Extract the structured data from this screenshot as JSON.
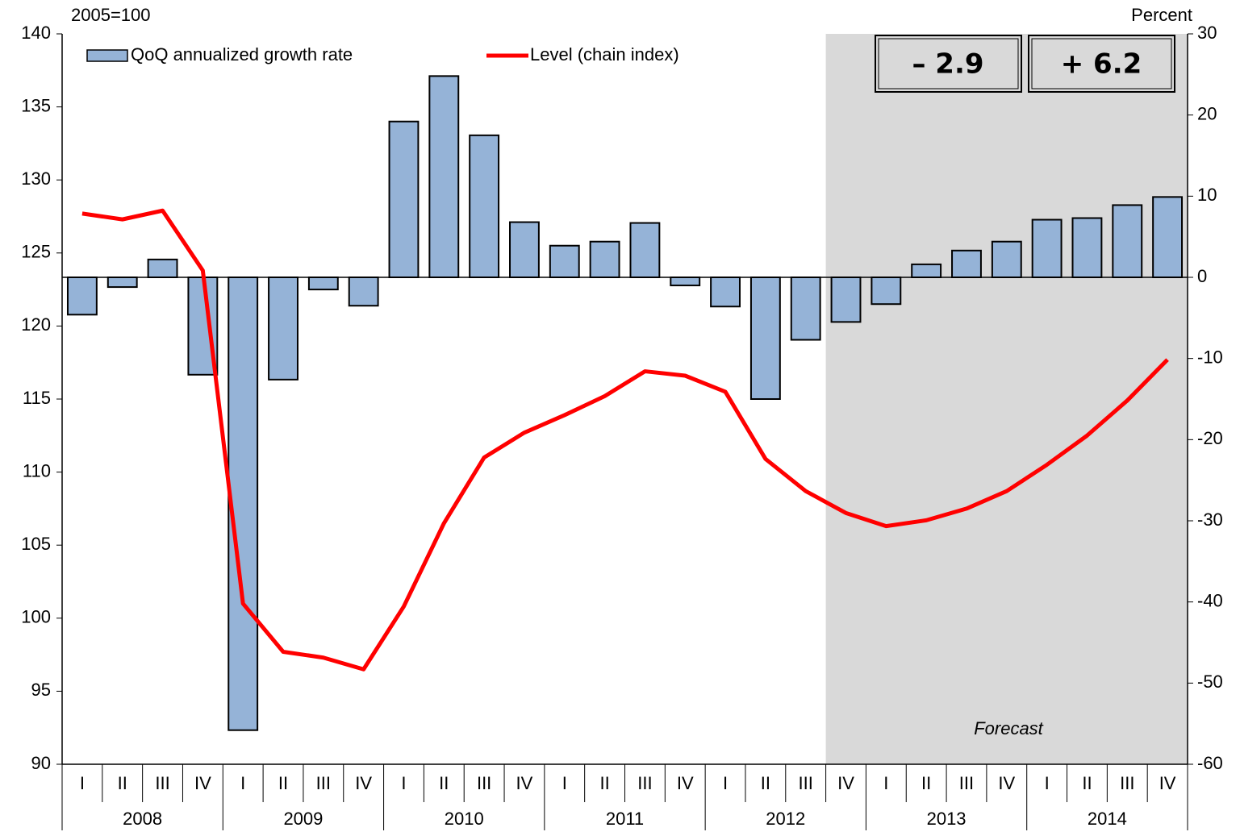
{
  "chart_data": {
    "type": "bar-line",
    "left_axis_label": "2005=100",
    "right_axis_label": "Percent",
    "categories": [
      "I",
      "II",
      "III",
      "IV",
      "I",
      "II",
      "III",
      "IV",
      "I",
      "II",
      "III",
      "IV",
      "I",
      "II",
      "III",
      "IV",
      "I",
      "II",
      "III",
      "IV",
      "I",
      "II",
      "III",
      "IV",
      "I",
      "II",
      "III",
      "IV"
    ],
    "year_groups": [
      "2008",
      "2009",
      "2010",
      "2011",
      "2012",
      "2013",
      "2014"
    ],
    "series": [
      {
        "name": "QoQ annualized growth rate",
        "kind": "bar",
        "axis": "y2",
        "color": "#95b3d7",
        "values": [
          -4.6,
          -1.2,
          2.2,
          -12.0,
          -55.8,
          -12.6,
          -1.5,
          -3.5,
          19.2,
          24.8,
          17.5,
          6.8,
          3.9,
          4.4,
          6.7,
          -1.0,
          -3.6,
          -15.0,
          -7.7,
          -5.5,
          -3.3,
          1.6,
          3.3,
          4.4,
          7.1,
          7.3,
          8.9,
          9.9
        ]
      },
      {
        "name": "Level (chain index)",
        "kind": "line",
        "axis": "y",
        "color": "#ff0000",
        "values": [
          127.7,
          127.3,
          127.9,
          123.8,
          101.0,
          97.7,
          97.3,
          96.5,
          100.8,
          106.5,
          111.0,
          112.7,
          113.9,
          115.2,
          116.9,
          116.6,
          115.5,
          110.9,
          108.7,
          107.2,
          106.3,
          106.7,
          107.5,
          108.7,
          110.5,
          112.5,
          114.9,
          117.7
        ]
      }
    ],
    "ylim": [
      90,
      140
    ],
    "yticks": [
      90,
      95,
      100,
      105,
      110,
      115,
      120,
      125,
      130,
      135,
      140
    ],
    "y2lim": [
      -60,
      30
    ],
    "y2ticks": [
      -60,
      -50,
      -40,
      -30,
      -20,
      -10,
      0,
      10,
      20,
      30
    ],
    "forecast_start_index": 19,
    "forecast_label": "Forecast",
    "forecast_color": "#d9d9d9",
    "annotations": [
      "– 2.9",
      "+ 6.2"
    ]
  }
}
